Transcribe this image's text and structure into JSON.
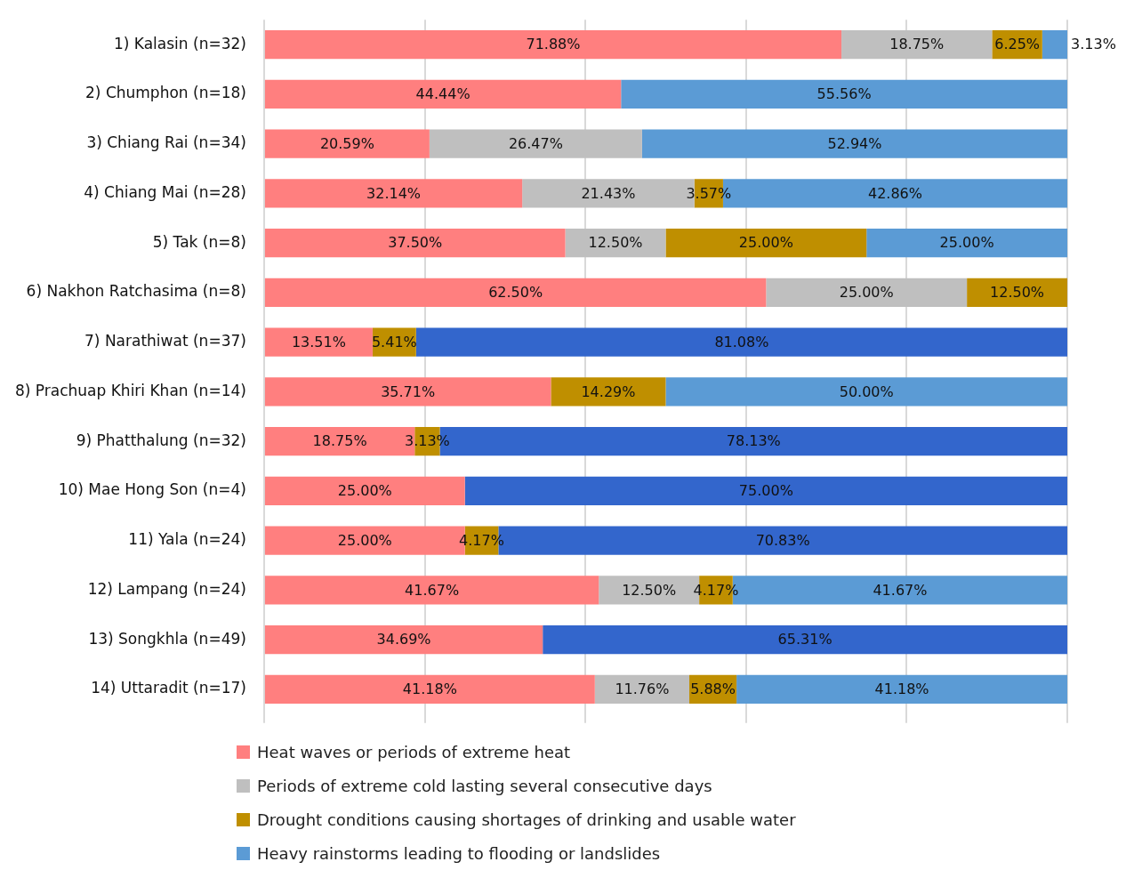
{
  "chart_data": {
    "type": "bar",
    "orientation": "horizontal",
    "stacked": true,
    "grid": "x",
    "tick_labels": "y",
    "legend": "bottom left",
    "categories": [
      "1) Kalasin (n=32)",
      "2) Chumphon (n=18)",
      "3) Chiang Rai (n=34)",
      "4) Chiang Mai (n=28)",
      "5) Tak (n=8)",
      "6) Nakhon Ratchasima (n=8)",
      "7) Narathiwat (n=37)",
      "8) Prachuap Khiri Khan (n=14)",
      "9) Phatthalung (n=32)",
      "10) Mae Hong Son (n=4)",
      "11) Yala (n=24)",
      "12) Lampang (n=24)",
      "13) Songkhla (n=49)",
      "14) Uttaradit (n=17)"
    ],
    "xlim": [
      0,
      100
    ],
    "xticks": [
      {
        "value": 0,
        "label": null
      },
      {
        "value": 20,
        "label": null
      },
      {
        "value": 40,
        "label": null
      },
      {
        "value": 60,
        "label": null
      },
      {
        "value": 80,
        "label": null
      },
      {
        "value": 100,
        "label": null
      }
    ],
    "series": [
      {
        "name": "Heat waves or periods of extreme heat",
        "color": "#ff7f7f",
        "values": [
          71.88,
          44.44,
          20.59,
          32.14,
          37.5,
          62.5,
          13.51,
          35.71,
          18.75,
          25.0,
          25.0,
          41.67,
          34.69,
          41.18
        ],
        "value_labels": [
          "71.88%",
          "44.44%",
          "20.59%",
          "32.14%",
          "37.50%",
          "62.50%",
          "13.51%",
          "35.71%",
          "18.75%",
          "25.00%",
          "25.00%",
          "41.67%",
          "34.69%",
          "41.18%"
        ]
      },
      {
        "name": "Periods of extreme cold lasting several consecutive days",
        "color": "#bfbfbf",
        "values": [
          18.75,
          null,
          26.47,
          21.43,
          12.5,
          25.0,
          null,
          null,
          null,
          null,
          null,
          12.5,
          null,
          11.76
        ],
        "value_labels": [
          "18.75%",
          null,
          "26.47%",
          "21.43%",
          "12.50%",
          "25.00%",
          null,
          null,
          null,
          null,
          null,
          "12.50%",
          null,
          "11.76%"
        ]
      },
      {
        "name": "Drought conditions causing shortages of drinking and usable water",
        "color": "#bf8f00",
        "values": [
          6.25,
          null,
          null,
          3.57,
          25.0,
          12.5,
          5.41,
          14.29,
          3.13,
          null,
          4.17,
          4.17,
          null,
          5.88
        ],
        "value_labels": [
          "6.25%",
          null,
          null,
          "3.57%",
          "25.00%",
          "12.50%",
          "5.41%",
          "14.29%",
          "3.13%",
          null,
          "4.17%",
          "4.17%",
          null,
          "5.88%"
        ]
      },
      {
        "name": "Heavy rainstorms leading to flooding or landslides",
        "color": "#5b9bd5",
        "colors": [
          "#5b9bd5",
          "#5b9bd5",
          "#5b9bd5",
          "#5b9bd5",
          "#5b9bd5",
          "#5b9bd5",
          "#3366cc",
          "#5b9bd5",
          "#3366cc",
          "#3366cc",
          "#3366cc",
          "#5b9bd5",
          "#3366cc",
          "#5b9bd5"
        ],
        "values": [
          3.13,
          55.56,
          52.94,
          42.86,
          25.0,
          null,
          81.08,
          50.0,
          78.13,
          75.0,
          70.83,
          41.67,
          65.31,
          41.18
        ],
        "value_labels": [
          "3.13%",
          "55.56%",
          "52.94%",
          "42.86%",
          "25.00%",
          null,
          "81.08%",
          "50.00%",
          "78.13%",
          "75.00%",
          "70.83%",
          "41.67%",
          "65.31%",
          "41.18%"
        ]
      }
    ]
  }
}
